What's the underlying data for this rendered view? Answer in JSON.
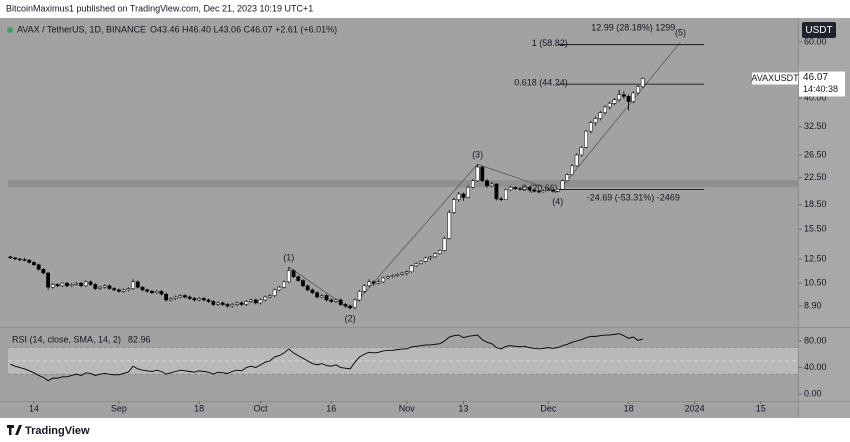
{
  "header": {
    "publisher": "BitcoinMaximus1 published on TradingView.com, Dec 21, 2023 10:19 UTC+1",
    "currency": "USDT",
    "symbol": "AVAXUSDT",
    "countdown": "14:40:38",
    "footer": "TradingView"
  },
  "chart_data": {
    "type": "candlestick",
    "title": "AVAX / TetherUS, 1D, BINANCE",
    "legend_text": "O43.46 H46.40 L43.06 C46.07 +2.61 (+6.01%)",
    "up_color": "#ffffff",
    "down_color": "#000000",
    "wick_color": "#000000",
    "log_scale": true,
    "xlim": [
      -0.5,
      166.9
    ],
    "xticks": [
      {
        "value": 5,
        "label": "14"
      },
      {
        "value": 23,
        "label": "Sep"
      },
      {
        "value": 40,
        "label": "18"
      },
      {
        "value": 53,
        "label": "Oct"
      },
      {
        "value": 68,
        "label": "16"
      },
      {
        "value": 84,
        "label": "Nov"
      },
      {
        "value": 96,
        "label": "13"
      },
      {
        "value": 114,
        "label": "Dec"
      },
      {
        "value": 131,
        "label": "18"
      },
      {
        "value": 145,
        "label": "2024"
      },
      {
        "value": 159,
        "label": "15"
      }
    ],
    "ylim": [
      7.76,
      69.3
    ],
    "yticks": [
      {
        "value": 60,
        "label": "60.00"
      },
      {
        "value": 40,
        "label": "40.00"
      },
      {
        "value": 32.5,
        "label": "32.50"
      },
      {
        "value": 26.5,
        "label": "26.50"
      },
      {
        "value": 22.5,
        "label": "22.50"
      },
      {
        "value": 18.5,
        "label": "18.50"
      },
      {
        "value": 15.5,
        "label": "15.50"
      },
      {
        "value": 12.5,
        "label": "12.50"
      },
      {
        "value": 10.5,
        "label": "10.50"
      },
      {
        "value": 8.9,
        "label": "8.90"
      }
    ],
    "zone": [
      21.0,
      22.1
    ],
    "zone_color": "#8c8c8c",
    "fib_color": "#000000",
    "fib_levels": [
      {
        "label": "1 (58.82)",
        "value": 58.82
      },
      {
        "label": "0.618 (44.24)",
        "value": 44.24
      },
      {
        "label": "0 (20.66)",
        "value": 20.66
      }
    ],
    "annotations": [
      {
        "label": "12.99 (28.18%) 1299"
      },
      {
        "label": "-24.69 (-53.31%) -2469"
      }
    ],
    "wave_color": "#5a5a5a",
    "waves": [
      {
        "label": "(1)",
        "x": 59,
        "value": 11.8
      },
      {
        "label": "(2)",
        "x": 72,
        "value": 8.7
      },
      {
        "label": "(3)",
        "x": 99,
        "value": 24.8
      },
      {
        "label": "(4)",
        "x": 116,
        "value": 20.3
      },
      {
        "label": "(5)",
        "x": 142,
        "value": 60
      }
    ],
    "candles": [
      [
        12.7,
        12.8,
        12.5,
        12.6
      ],
      [
        12.6,
        12.7,
        12.4,
        12.5
      ],
      [
        12.5,
        12.6,
        12.3,
        12.45
      ],
      [
        12.45,
        12.6,
        12.3,
        12.4
      ],
      [
        12.4,
        12.5,
        12.1,
        12.2
      ],
      [
        12.2,
        12.3,
        11.9,
        12.0
      ],
      [
        12.0,
        12.1,
        11.5,
        11.6
      ],
      [
        11.6,
        11.7,
        11.2,
        11.3
      ],
      [
        11.3,
        11.4,
        10.0,
        10.2
      ],
      [
        10.2,
        10.5,
        10.1,
        10.4
      ],
      [
        10.4,
        10.5,
        10.2,
        10.3
      ],
      [
        10.3,
        10.6,
        10.2,
        10.5
      ],
      [
        10.5,
        10.6,
        10.2,
        10.3
      ],
      [
        10.3,
        10.5,
        10.2,
        10.4
      ],
      [
        10.4,
        10.6,
        10.3,
        10.5
      ],
      [
        10.5,
        10.6,
        10.2,
        10.3
      ],
      [
        10.3,
        10.7,
        10.2,
        10.6
      ],
      [
        10.6,
        10.7,
        10.3,
        10.4
      ],
      [
        10.4,
        10.5,
        10.0,
        10.1
      ],
      [
        10.1,
        10.3,
        10.0,
        10.2
      ],
      [
        10.2,
        10.4,
        10.1,
        10.3
      ],
      [
        10.3,
        10.4,
        10.0,
        10.1
      ],
      [
        10.1,
        10.2,
        9.9,
        10.0
      ],
      [
        10.0,
        10.1,
        9.8,
        9.9
      ],
      [
        9.9,
        10.1,
        9.8,
        10.0
      ],
      [
        10.0,
        10.2,
        9.9,
        10.1
      ],
      [
        10.1,
        10.8,
        10.0,
        10.6
      ],
      [
        10.6,
        10.7,
        10.1,
        10.2
      ],
      [
        10.2,
        10.3,
        9.9,
        10.0
      ],
      [
        10.0,
        10.1,
        9.8,
        9.9
      ],
      [
        9.9,
        10.0,
        9.7,
        9.8
      ],
      [
        9.8,
        10.0,
        9.7,
        9.9
      ],
      [
        9.9,
        10.0,
        9.6,
        9.7
      ],
      [
        9.7,
        9.8,
        9.2,
        9.3
      ],
      [
        9.3,
        9.5,
        9.2,
        9.4
      ],
      [
        9.4,
        9.6,
        9.3,
        9.5
      ],
      [
        9.5,
        9.7,
        9.4,
        9.6
      ],
      [
        9.6,
        9.7,
        9.4,
        9.5
      ],
      [
        9.5,
        9.6,
        9.3,
        9.4
      ],
      [
        9.4,
        9.5,
        9.2,
        9.3
      ],
      [
        9.3,
        9.5,
        9.2,
        9.4
      ],
      [
        9.4,
        9.5,
        9.2,
        9.3
      ],
      [
        9.3,
        9.4,
        9.1,
        9.2
      ],
      [
        9.2,
        9.3,
        8.9,
        9.0
      ],
      [
        9.0,
        9.2,
        8.9,
        9.1
      ],
      [
        9.1,
        9.2,
        8.9,
        9.0
      ],
      [
        9.0,
        9.1,
        8.8,
        8.9
      ],
      [
        8.9,
        9.1,
        8.8,
        9.0
      ],
      [
        9.0,
        9.2,
        8.9,
        9.1
      ],
      [
        9.1,
        9.2,
        8.9,
        9.0
      ],
      [
        9.0,
        9.3,
        8.9,
        9.2
      ],
      [
        9.2,
        9.4,
        9.1,
        9.3
      ],
      [
        9.3,
        9.4,
        9.0,
        9.1
      ],
      [
        9.1,
        9.4,
        9.0,
        9.3
      ],
      [
        9.3,
        9.6,
        9.2,
        9.5
      ],
      [
        9.5,
        9.7,
        9.4,
        9.6
      ],
      [
        9.6,
        10.1,
        9.5,
        10.0
      ],
      [
        10.0,
        10.3,
        9.9,
        10.2
      ],
      [
        10.2,
        10.7,
        10.1,
        10.6
      ],
      [
        10.6,
        11.8,
        10.5,
        11.5
      ],
      [
        11.5,
        11.6,
        10.9,
        11.0
      ],
      [
        11.0,
        11.1,
        10.6,
        10.7
      ],
      [
        10.7,
        10.8,
        10.2,
        10.3
      ],
      [
        10.3,
        10.4,
        9.9,
        10.0
      ],
      [
        10.0,
        10.1,
        9.7,
        9.8
      ],
      [
        9.8,
        9.9,
        9.4,
        9.5
      ],
      [
        9.5,
        9.7,
        9.4,
        9.6
      ],
      [
        9.6,
        9.7,
        9.2,
        9.3
      ],
      [
        9.3,
        9.4,
        9.1,
        9.2
      ],
      [
        9.2,
        9.4,
        9.1,
        9.3
      ],
      [
        9.3,
        9.4,
        8.9,
        9.0
      ],
      [
        9.0,
        9.1,
        8.8,
        8.9
      ],
      [
        8.9,
        9.0,
        8.7,
        8.8
      ],
      [
        8.8,
        9.4,
        8.7,
        9.3
      ],
      [
        9.3,
        10.0,
        9.2,
        9.9
      ],
      [
        9.9,
        10.4,
        9.8,
        10.3
      ],
      [
        10.3,
        10.8,
        10.2,
        10.6
      ],
      [
        10.6,
        10.7,
        10.3,
        10.5
      ],
      [
        10.5,
        10.8,
        10.4,
        10.6
      ],
      [
        10.6,
        11.0,
        10.5,
        10.9
      ],
      [
        10.9,
        11.1,
        10.8,
        11.0
      ],
      [
        11.0,
        11.2,
        10.9,
        11.1
      ],
      [
        11.1,
        11.3,
        11.0,
        11.2
      ],
      [
        11.2,
        11.4,
        11.1,
        11.3
      ],
      [
        11.3,
        11.5,
        11.1,
        11.4
      ],
      [
        11.4,
        12.0,
        11.3,
        11.9
      ],
      [
        11.9,
        12.2,
        11.8,
        12.1
      ],
      [
        12.1,
        12.4,
        12.0,
        12.3
      ],
      [
        12.3,
        12.7,
        12.2,
        12.6
      ],
      [
        12.6,
        12.8,
        12.4,
        12.7
      ],
      [
        12.7,
        13.1,
        12.6,
        13.0
      ],
      [
        13.0,
        13.4,
        12.9,
        13.3
      ],
      [
        13.3,
        14.7,
        13.2,
        14.5
      ],
      [
        14.5,
        17.8,
        14.4,
        17.5
      ],
      [
        17.5,
        19.5,
        17.3,
        19.2
      ],
      [
        19.2,
        20.3,
        18.9,
        20.0
      ],
      [
        20.0,
        20.2,
        19.0,
        19.5
      ],
      [
        19.5,
        21.3,
        19.4,
        21.0
      ],
      [
        21.0,
        22.3,
        20.8,
        22.0
      ],
      [
        22.0,
        24.8,
        21.8,
        24.3
      ],
      [
        24.3,
        24.5,
        21.8,
        22.0
      ],
      [
        22.0,
        22.3,
        20.9,
        21.2
      ],
      [
        21.2,
        21.8,
        21.0,
        21.5
      ],
      [
        21.5,
        21.6,
        19.1,
        19.3
      ],
      [
        19.3,
        19.6,
        19.0,
        19.2
      ],
      [
        19.2,
        20.8,
        19.1,
        20.6
      ],
      [
        20.6,
        21.2,
        20.4,
        21.0
      ],
      [
        21.0,
        21.1,
        20.6,
        20.8
      ],
      [
        20.8,
        21.0,
        20.5,
        20.7
      ],
      [
        20.7,
        21.2,
        20.6,
        21.0
      ],
      [
        21.0,
        21.1,
        20.4,
        20.6
      ],
      [
        20.6,
        20.7,
        20.2,
        20.4
      ],
      [
        20.4,
        20.6,
        20.1,
        20.3
      ],
      [
        20.3,
        20.7,
        20.2,
        20.5
      ],
      [
        20.5,
        20.8,
        20.4,
        20.6
      ],
      [
        20.6,
        20.7,
        20.2,
        20.4
      ],
      [
        20.4,
        20.8,
        20.3,
        20.7
      ],
      [
        20.7,
        22.2,
        20.6,
        22.0
      ],
      [
        22.0,
        23.2,
        21.9,
        23.0
      ],
      [
        23.0,
        24.8,
        22.9,
        24.5
      ],
      [
        24.5,
        26.8,
        24.3,
        26.5
      ],
      [
        26.5,
        28.3,
        26.2,
        28.0
      ],
      [
        28.0,
        31.8,
        27.8,
        31.5
      ],
      [
        31.5,
        33.9,
        31.0,
        33.5
      ],
      [
        33.5,
        35.0,
        32.8,
        34.5
      ],
      [
        34.5,
        36.5,
        34.0,
        36.0
      ],
      [
        36.0,
        38.0,
        35.5,
        37.5
      ],
      [
        37.5,
        39.0,
        36.8,
        38.5
      ],
      [
        38.5,
        40.0,
        38.0,
        39.5
      ],
      [
        39.5,
        42.5,
        39.0,
        41.0
      ],
      [
        41.0,
        42.0,
        39.8,
        40.5
      ],
      [
        40.5,
        41.0,
        36.5,
        39.0
      ],
      [
        39.0,
        42.0,
        38.5,
        41.5
      ],
      [
        41.5,
        44.0,
        41.0,
        43.46
      ],
      [
        43.46,
        46.4,
        43.06,
        46.07
      ]
    ],
    "rsi": {
      "title": "RSI (14, close, SMA, 14, 2)",
      "color": "#000000",
      "band": [
        30,
        70
      ],
      "midline": 50,
      "ylim": [
        -9,
        96.6
      ],
      "yticks": [
        {
          "value": 80,
          "label": "80.00"
        },
        {
          "value": 40,
          "label": "40.00"
        },
        {
          "value": 0,
          "label": "0.00"
        }
      ],
      "values": [
        45,
        42,
        40,
        38,
        35,
        32,
        28,
        25,
        20,
        24,
        24,
        26,
        26,
        28,
        30,
        28,
        32,
        31,
        28,
        30,
        31,
        30,
        29,
        29,
        31,
        33,
        42,
        38,
        36,
        35,
        34,
        36,
        34,
        30,
        32,
        34,
        36,
        35,
        34,
        33,
        35,
        34,
        33,
        30,
        33,
        32,
        31,
        34,
        36,
        35,
        40,
        42,
        40,
        44,
        48,
        50,
        56,
        58,
        62,
        68,
        62,
        58,
        54,
        50,
        46,
        44,
        46,
        43,
        42,
        44,
        40,
        39,
        38,
        48,
        56,
        60,
        63,
        62,
        63,
        65,
        66,
        66,
        67,
        68,
        68,
        71,
        72,
        73,
        74,
        74,
        75,
        76,
        80,
        86,
        88,
        89,
        85,
        87,
        88,
        89,
        82,
        78,
        76,
        70,
        68,
        72,
        73,
        72,
        71,
        72,
        70,
        69,
        68,
        69,
        70,
        69,
        70,
        73,
        75,
        78,
        80,
        82,
        85,
        87,
        87,
        88,
        89,
        89,
        90,
        91,
        88,
        84,
        86,
        81,
        82.96
      ]
    }
  }
}
